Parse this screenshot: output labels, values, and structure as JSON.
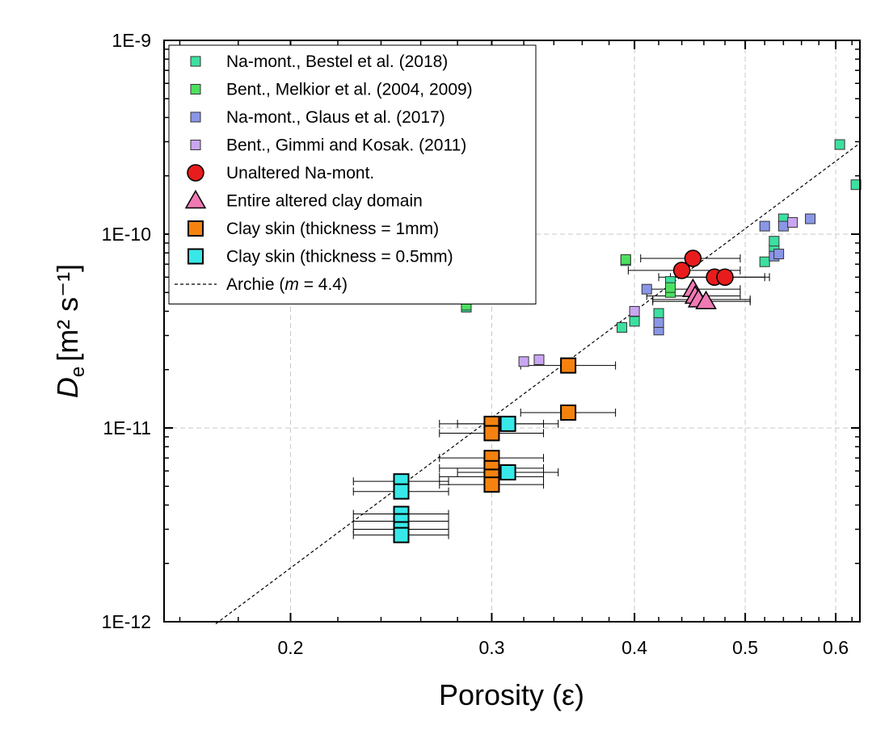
{
  "chart_data": {
    "type": "scatter",
    "xscale": "log",
    "yscale": "log",
    "xlim": [
      0.155,
      0.63
    ],
    "ylim": [
      1e-12,
      1e-09
    ],
    "xlabel": "Porosity (ε)",
    "ylabel_main": "D",
    "ylabel_sub": "e",
    "ylabel_units": "[m² s⁻¹]",
    "grid": true,
    "legend_position": "top-left",
    "x_ticks": [
      {
        "value": 0.2,
        "label": "0.2"
      },
      {
        "value": 0.3,
        "label": "0.3"
      },
      {
        "value": 0.4,
        "label": "0.4"
      },
      {
        "value": 0.5,
        "label": "0.5"
      },
      {
        "value": 0.6,
        "label": "0.6"
      }
    ],
    "y_ticks": [
      {
        "value": 1e-12,
        "label": "1E-12"
      },
      {
        "value": 1e-11,
        "label": "1E-11"
      },
      {
        "value": 1e-10,
        "label": "1E-10"
      },
      {
        "value": 1e-09,
        "label": "1E-9"
      }
    ],
    "series": [
      {
        "name": "Na-mont., Bestel et al. (2018)",
        "marker": "square-small",
        "color": "#3CE0A0",
        "points": [
          [
            0.285,
            4.2e-11
          ],
          [
            0.285,
            4.4e-11
          ],
          [
            0.39,
            3.3e-11
          ],
          [
            0.4,
            3.55e-11
          ],
          [
            0.42,
            3.9e-11
          ],
          [
            0.43,
            5.4e-11
          ],
          [
            0.43,
            5.7e-11
          ],
          [
            0.52,
            7.2e-11
          ],
          [
            0.53,
            8.4e-11
          ],
          [
            0.53,
            9.2e-11
          ],
          [
            0.54,
            1.2e-10
          ],
          [
            0.605,
            2.9e-10
          ],
          [
            0.625,
            1.8e-10
          ],
          [
            0.393,
            7.3e-11
          ]
        ]
      },
      {
        "name": "Bent., Melkior et al. (2004, 2009)",
        "marker": "square-small",
        "color": "#4CE060",
        "points": [
          [
            0.285,
            4.3e-11
          ],
          [
            0.43,
            5e-11
          ],
          [
            0.43,
            5.3e-11
          ],
          [
            0.393,
            7.4e-11
          ]
        ]
      },
      {
        "name": "Na-mont., Glaus et al. (2017)",
        "marker": "square-small",
        "color": "#8A96E6",
        "points": [
          [
            0.41,
            5.2e-11
          ],
          [
            0.42,
            3.2e-11
          ],
          [
            0.42,
            3.5e-11
          ],
          [
            0.52,
            1.1e-10
          ],
          [
            0.53,
            7.7e-11
          ],
          [
            0.535,
            7.9e-11
          ],
          [
            0.54,
            1.1e-10
          ],
          [
            0.57,
            1.2e-10
          ]
        ]
      },
      {
        "name": "Bent., Gimmi and Kosak. (2011)",
        "marker": "square-small",
        "color": "#C9A6F0",
        "points": [
          [
            0.32,
            2.2e-11
          ],
          [
            0.33,
            2.25e-11
          ],
          [
            0.4,
            4e-11
          ],
          [
            0.55,
            1.15e-10
          ]
        ]
      },
      {
        "name": "Unaltered Na-mont.",
        "marker": "circle",
        "color": "#E81C1C",
        "points": [
          [
            0.44,
            6.5e-11
          ],
          [
            0.45,
            7.5e-11
          ],
          [
            0.47,
            6e-11
          ],
          [
            0.48,
            6e-11
          ]
        ],
        "xerr": [
          [
            0.44,
            0.395,
            0.495
          ],
          [
            0.45,
            0.405,
            0.495
          ],
          [
            0.47,
            0.42,
            0.52
          ],
          [
            0.48,
            0.43,
            0.525
          ]
        ]
      },
      {
        "name": "Entire altered clay domain",
        "marker": "triangle",
        "color": "#F07AB4",
        "points": [
          [
            0.45,
            5.2e-11
          ],
          [
            0.452,
            4.8e-11
          ],
          [
            0.455,
            4.6e-11
          ],
          [
            0.462,
            4.5e-11
          ]
        ],
        "xerr": [
          [
            0.45,
            0.41,
            0.495
          ],
          [
            0.452,
            0.41,
            0.495
          ],
          [
            0.455,
            0.415,
            0.505
          ],
          [
            0.462,
            0.415,
            0.505
          ]
        ]
      },
      {
        "name": "Clay skin (thickness = 1mm)",
        "marker": "square-large",
        "color": "#F5820F",
        "points": [
          [
            0.35,
            2.1e-11
          ],
          [
            0.35,
            1.2e-11
          ],
          [
            0.3,
            1.05e-11
          ],
          [
            0.3,
            9.4e-12
          ],
          [
            0.3,
            7e-12
          ],
          [
            0.3,
            6.2e-12
          ],
          [
            0.3,
            5.6e-12
          ],
          [
            0.3,
            5.1e-12
          ]
        ],
        "xerr": [
          [
            0.35,
            0.318,
            0.385
          ],
          [
            0.35,
            0.318,
            0.385
          ],
          [
            0.3,
            0.27,
            0.333
          ],
          [
            0.3,
            0.27,
            0.333
          ],
          [
            0.3,
            0.27,
            0.333
          ],
          [
            0.3,
            0.27,
            0.333
          ],
          [
            0.3,
            0.27,
            0.333
          ],
          [
            0.3,
            0.27,
            0.333
          ]
        ]
      },
      {
        "name": "Clay skin (thickness = 0.5mm)",
        "marker": "square-large",
        "color": "#38E8E8",
        "points": [
          [
            0.31,
            1.05e-11
          ],
          [
            0.31,
            5.9e-12
          ],
          [
            0.25,
            5.3e-12
          ],
          [
            0.25,
            4.7e-12
          ],
          [
            0.25,
            3.6e-12
          ],
          [
            0.25,
            3.3e-12
          ],
          [
            0.25,
            3e-12
          ],
          [
            0.25,
            2.8e-12
          ]
        ],
        "xerr": [
          [
            0.31,
            0.28,
            0.343
          ],
          [
            0.31,
            0.28,
            0.343
          ],
          [
            0.25,
            0.227,
            0.275
          ],
          [
            0.25,
            0.227,
            0.275
          ],
          [
            0.25,
            0.227,
            0.275
          ],
          [
            0.25,
            0.227,
            0.275
          ],
          [
            0.25,
            0.227,
            0.275
          ],
          [
            0.25,
            0.227,
            0.275
          ]
        ]
      }
    ],
    "fit_line": {
      "name_prefix": "Archie (",
      "name_m": "m",
      "name_suffix": " = 4.4)",
      "exponent": 4.4,
      "x_range": [
        0.172,
        0.63
      ],
      "color": "#000000"
    }
  }
}
